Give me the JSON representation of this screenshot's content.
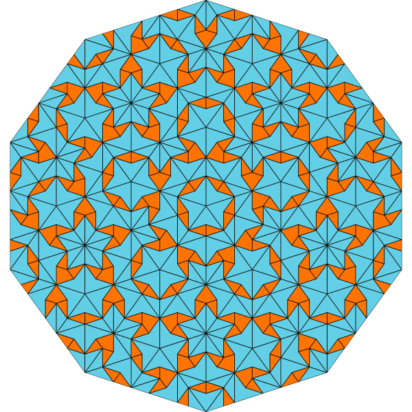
{
  "tiling": {
    "kind": "Penrose rhombus tiling (P3)",
    "outline_shape": "decagon",
    "deflation_generations": 5,
    "rotation_symmetry": 10,
    "colors": {
      "thick_rhombus": "#63cfe6",
      "thin_rhombus": "#ff7300",
      "edge": "#111111",
      "background": "#ffffff"
    }
  }
}
